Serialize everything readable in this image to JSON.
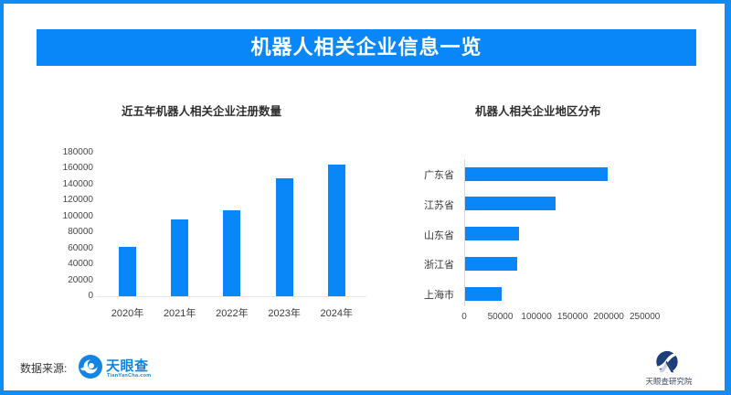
{
  "header": {
    "title": "机器人相关企业信息一览"
  },
  "colors": {
    "primary_blue": "#0987f9",
    "border_blue": "#0f8cf6",
    "logo_blue": "#1285e2",
    "institute_navy": "#1c3f7c",
    "axis_text": "#464646"
  },
  "chart_data": [
    {
      "type": "bar",
      "orientation": "vertical",
      "title": "近五年机器人相关企业注册数量",
      "categories": [
        "2020年",
        "2021年",
        "2022年",
        "2023年",
        "2024年"
      ],
      "values": [
        62000,
        96000,
        108000,
        148000,
        165000
      ],
      "ylim": [
        0,
        180000
      ],
      "yticks": [
        0,
        20000,
        40000,
        60000,
        80000,
        100000,
        120000,
        140000,
        160000,
        180000
      ],
      "grid": "off",
      "legend": "none",
      "bar_color": "#0987f9"
    },
    {
      "type": "bar",
      "orientation": "horizontal",
      "title": "机器人相关企业地区分布",
      "categories": [
        "广东省",
        "江苏省",
        "山东省",
        "浙江省",
        "上海市"
      ],
      "values": [
        197000,
        125000,
        74000,
        72000,
        51000
      ],
      "xlim": [
        0,
        250000
      ],
      "xticks": [
        0,
        50000,
        100000,
        150000,
        200000,
        250000
      ],
      "grid": "off",
      "legend": "none",
      "bar_color": "#0987f9"
    }
  ],
  "footer": {
    "source_label": "数据来源:",
    "logo_icon": "tianyancha-eye-icon",
    "logo_text": "天眼查",
    "logo_sub": "TianYanCha.com",
    "institute_icon": "tianyancha-institute-icon",
    "institute": "天眼查研究院"
  }
}
